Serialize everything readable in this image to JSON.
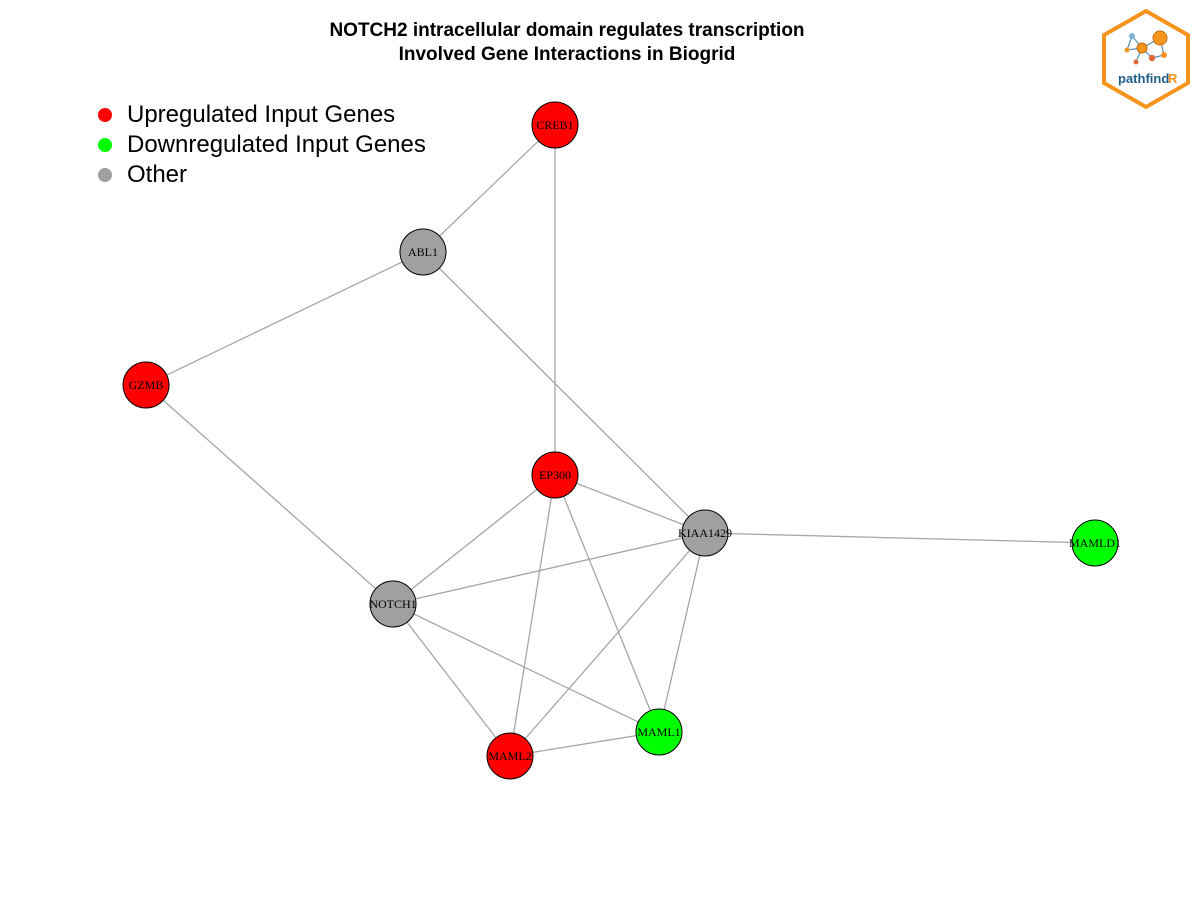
{
  "title": {
    "line1": "NOTCH2 intracellular domain regulates transcription",
    "line2": "Involved Gene Interactions in Biogrid"
  },
  "legend": {
    "items": [
      {
        "label": "Upregulated Input Genes",
        "color": "#ff0000"
      },
      {
        "label": "Downregulated Input Genes",
        "color": "#00ff00"
      },
      {
        "label": "Other",
        "color": "#a0a0a0"
      }
    ]
  },
  "logo": {
    "text_main": "pathfind",
    "text_accent": "R",
    "border_color": "#f7941d",
    "text_color": "#1f5f8b"
  },
  "network": {
    "nodes": [
      {
        "id": "CREB1",
        "label": "CREB1",
        "group": "up"
      },
      {
        "id": "ABL1",
        "label": "ABL1",
        "group": "other"
      },
      {
        "id": "GZMB",
        "label": "GZMB",
        "group": "up"
      },
      {
        "id": "EP300",
        "label": "EP300",
        "group": "up"
      },
      {
        "id": "KIAA1429",
        "label": "KIAA1429",
        "group": "other"
      },
      {
        "id": "MAMLD1",
        "label": "MAMLD1",
        "group": "down"
      },
      {
        "id": "NOTCH1",
        "label": "NOTCH1",
        "group": "other"
      },
      {
        "id": "MAML1",
        "label": "MAML1",
        "group": "down"
      },
      {
        "id": "MAML2",
        "label": "MAML2",
        "group": "up"
      }
    ],
    "edges": [
      [
        "CREB1",
        "ABL1"
      ],
      [
        "CREB1",
        "EP300"
      ],
      [
        "ABL1",
        "GZMB"
      ],
      [
        "ABL1",
        "KIAA1429"
      ],
      [
        "GZMB",
        "NOTCH1"
      ],
      [
        "EP300",
        "KIAA1429"
      ],
      [
        "EP300",
        "NOTCH1"
      ],
      [
        "EP300",
        "MAML2"
      ],
      [
        "EP300",
        "MAML1"
      ],
      [
        "KIAA1429",
        "MAMLD1"
      ],
      [
        "KIAA1429",
        "NOTCH1"
      ],
      [
        "KIAA1429",
        "MAML2"
      ],
      [
        "KIAA1429",
        "MAML1"
      ],
      [
        "NOTCH1",
        "MAML2"
      ],
      [
        "NOTCH1",
        "MAML1"
      ],
      [
        "MAML2",
        "MAML1"
      ]
    ],
    "colors": {
      "up": "#ff0000",
      "down": "#00ff00",
      "other": "#a0a0a0",
      "edge": "#a6a6a6"
    }
  }
}
